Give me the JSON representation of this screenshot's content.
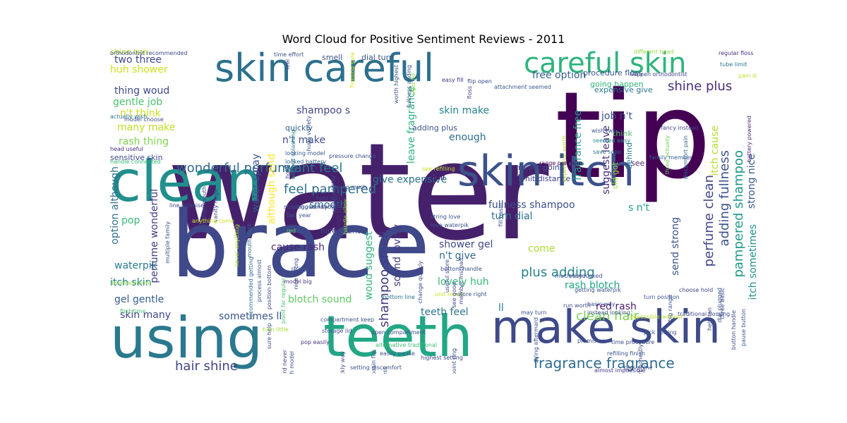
{
  "title": "Word Cloud for Positive Sentiment Reviews - 2011",
  "words": [
    {
      "text": "water",
      "color": "#46216b"
    },
    {
      "text": "brace",
      "color": "#3f4889"
    },
    {
      "text": "tip",
      "color": "#440154"
    },
    {
      "text": "clean",
      "color": "#21908d"
    },
    {
      "text": "using",
      "color": "#2a798e"
    },
    {
      "text": "teeth",
      "color": "#22a785"
    },
    {
      "text": "make skin",
      "color": "#3e4a89"
    },
    {
      "text": "skin careful",
      "color": "#2d708e"
    },
    {
      "text": "careful skin",
      "color": "#2fb47c"
    },
    {
      "text": "skin itch",
      "color": "#3b528b"
    },
    {
      "text": "fragrance fragrance",
      "color": "#2f6c8e"
    },
    {
      "text": "wonderful perfume",
      "color": "#31688e"
    },
    {
      "text": "feel pampered",
      "color": "#2d708e"
    },
    {
      "text": "want feel",
      "color": "#2a788e"
    },
    {
      "text": "shine plus",
      "color": "#472d7b"
    },
    {
      "text": "hair shine",
      "color": "#414487"
    },
    {
      "text": "clean hair",
      "color": "#7ad151"
    },
    {
      "text": "pampered shampoo",
      "color": "#1f9a8a"
    },
    {
      "text": "adding fullness",
      "color": "#3b528b"
    },
    {
      "text": "perfume clean",
      "color": "#404588"
    },
    {
      "text": "shampoo smell",
      "color": "#443a83"
    },
    {
      "text": "plus adding",
      "color": "#26828e"
    },
    {
      "text": "lovely huh",
      "color": "#35b779"
    },
    {
      "text": "teeth feel",
      "color": "#2c728e"
    },
    {
      "text": "blotch sound",
      "color": "#5ec962"
    },
    {
      "text": "shower gel",
      "color": "#3e4989"
    },
    {
      "text": "n't give",
      "color": "#31688e"
    },
    {
      "text": "rash blotch",
      "color": "#20a386"
    },
    {
      "text": "red rash",
      "color": "#481f70"
    },
    {
      "text": "send strong",
      "color": "#3b528b"
    },
    {
      "text": "itch sometimes",
      "color": "#20928c"
    },
    {
      "text": "strong nice",
      "color": "#39568c"
    },
    {
      "text": "itch cause",
      "color": "#b5de2b"
    },
    {
      "text": "skin make",
      "color": "#25848e"
    },
    {
      "text": "free option",
      "color": "#355f8d"
    },
    {
      "text": "job n't",
      "color": "#3b518b"
    },
    {
      "text": "shampoo s",
      "color": "#404688"
    },
    {
      "text": "n't make",
      "color": "#3e4c8a"
    },
    {
      "text": "enough",
      "color": "#2e6f8e"
    },
    {
      "text": "leave fragrance",
      "color": "#2db27d"
    },
    {
      "text": "fragrance free",
      "color": "#1fa188"
    },
    {
      "text": "water spray",
      "color": "#38588c"
    },
    {
      "text": "although send",
      "color": "#fde725"
    },
    {
      "text": "woud suggest",
      "color": "#31b57b"
    },
    {
      "text": "sound lovely",
      "color": "#443b84"
    },
    {
      "text": "give expensive",
      "color": "#2c718e"
    },
    {
      "text": "fullness shampoo",
      "color": "#3d4e8a"
    },
    {
      "text": "turn dial",
      "color": "#2d708e"
    },
    {
      "text": "suggest leave",
      "color": "#472f7d"
    },
    {
      "text": "s n't",
      "color": "#1fa287"
    },
    {
      "text": "come",
      "color": "#aadc32"
    },
    {
      "text": "ll",
      "color": "#2a788e"
    },
    {
      "text": "sometimes ll",
      "color": "#3a548c"
    },
    {
      "text": "cause rash",
      "color": "#482576"
    },
    {
      "text": "smooth",
      "color": "#31678e"
    },
    {
      "text": "two three",
      "color": "#3f4788"
    },
    {
      "text": "huh shower",
      "color": "#d0e11c"
    },
    {
      "text": "thing woud",
      "color": "#3e4a89"
    },
    {
      "text": "gentle job",
      "color": "#4ac16d"
    },
    {
      "text": "n't think",
      "color": "#c8e020"
    },
    {
      "text": "many make",
      "color": "#bddf26"
    },
    {
      "text": "rash thing",
      "color": "#7fd34e"
    },
    {
      "text": "option although",
      "color": "#2e6e8e"
    },
    {
      "text": "perfume wonderful",
      "color": "#433e85"
    },
    {
      "text": "pop",
      "color": "#3bbb75"
    },
    {
      "text": "waterpik",
      "color": "#287c8e"
    },
    {
      "text": "itch skin",
      "color": "#26818e"
    },
    {
      "text": "gel gentle",
      "color": "#355e8d"
    },
    {
      "text": "skin many",
      "color": "#404688"
    },
    {
      "text": "expensive give",
      "color": "#2a778e"
    },
    {
      "text": "dial turn",
      "color": "#3a548c"
    },
    {
      "text": "smell",
      "color": "#3b528b"
    },
    {
      "text": "half",
      "color": "#481a6c"
    },
    {
      "text": "nice scent",
      "color": "#3e4a89"
    },
    {
      "text": "shine hair",
      "color": "#b8de29"
    },
    {
      "text": "sensitive skin",
      "color": "#3e4989"
    },
    {
      "text": "quickly",
      "color": "#33638d"
    },
    {
      "text": "adding plus",
      "color": "#3a538b"
    },
    {
      "text": "never going",
      "color": "#3f4788"
    },
    {
      "text": "limit distance",
      "color": "#414287"
    },
    {
      "text": "procedure floss",
      "color": "#3a548c"
    },
    {
      "text": "going happen",
      "color": "#2fb47c"
    },
    {
      "text": "think",
      "color": "#4cc26c"
    },
    {
      "text": "behind",
      "color": "#277f8e"
    },
    {
      "text": "old got",
      "color": "#a2da37"
    },
    {
      "text": "see",
      "color": "#482878"
    },
    {
      "text": "orthodontist recommended",
      "color": "#3e4a89"
    },
    {
      "text": "regular floss",
      "color": "#46307e"
    },
    {
      "text": "tube limit",
      "color": "#2a768e"
    },
    {
      "text": "pain different",
      "color": "#bade28"
    },
    {
      "text": "different head",
      "color": "#90d743"
    },
    {
      "text": "time effort",
      "color": "#39558c"
    },
    {
      "text": "happen orthodontist",
      "color": "#3f4788"
    },
    {
      "text": "expensive worth",
      "color": "#b2dd2d"
    },
    {
      "text": "fancy instead",
      "color": "#404588"
    },
    {
      "text": "three actually",
      "color": "#6ece58"
    },
    {
      "text": "discomfort pain",
      "color": "#31688e"
    },
    {
      "text": "battery powered",
      "color": "#472d7b"
    },
    {
      "text": "save sooo",
      "color": "#2c718e"
    },
    {
      "text": "seemed easy",
      "color": "#21918c"
    },
    {
      "text": "wish two",
      "color": "#3b528b"
    },
    {
      "text": "family member",
      "color": "#355e8d"
    },
    {
      "text": "range pressure",
      "color": "#440154"
    },
    {
      "text": "see refilling",
      "color": "#c0df25"
    },
    {
      "text": "feel",
      "color": "#404688"
    },
    {
      "text": "flossing sure",
      "color": "#d8e219"
    },
    {
      "text": "worth highest",
      "color": "#3a538b"
    },
    {
      "text": "right lid",
      "color": "#8bd646"
    },
    {
      "text": "easy fill",
      "color": "#46337f"
    },
    {
      "text": "flip open",
      "color": "#3e4c8a"
    },
    {
      "text": "attachment seemed",
      "color": "#38598c"
    },
    {
      "text": "without splashing",
      "color": "#277e8e"
    },
    {
      "text": "huge variety",
      "color": "#3b528b"
    },
    {
      "text": "model choose",
      "color": "#3d4e8a"
    },
    {
      "text": "looking model",
      "color": "#38588c"
    },
    {
      "text": "looked battery",
      "color": "#33638d"
    },
    {
      "text": "actually wish",
      "color": "#2d708e"
    },
    {
      "text": "head useful",
      "color": "#472c7a"
    },
    {
      "text": "handle connected",
      "color": "#33b67a"
    },
    {
      "text": "lid attachment",
      "color": "#8ed645"
    },
    {
      "text": "first time",
      "color": "#4cc26c"
    },
    {
      "text": "vanity huge",
      "color": "#404588"
    },
    {
      "text": "position mouth",
      "color": "#3f4788"
    },
    {
      "text": "line promise",
      "color": "#3e4a89"
    },
    {
      "text": "multiple family",
      "color": "#3c4f8a"
    },
    {
      "text": "anything come",
      "color": "#cae11f"
    },
    {
      "text": "standing vanity",
      "color": "#3f4788"
    },
    {
      "text": "two year",
      "color": "#3b528b"
    },
    {
      "text": "red",
      "color": "#6ccd5a"
    },
    {
      "text": "recommended getting",
      "color": "#2e6f8e"
    },
    {
      "text": "mouth start",
      "color": "#31688e"
    },
    {
      "text": "never anything",
      "color": "#b5de2b"
    },
    {
      "text": "process almost",
      "color": "#3b528b"
    },
    {
      "text": "plugged handle",
      "color": "#3c4f8a"
    },
    {
      "text": "hold",
      "color": "#3e4a89"
    },
    {
      "text": "position bottom",
      "color": "#3f4788"
    },
    {
      "text": "point far regular",
      "color": "#4ac16d"
    },
    {
      "text": "hold lot",
      "color": "#404688"
    },
    {
      "text": "sooo much",
      "color": "#3f4788"
    },
    {
      "text": "handle allow",
      "color": "#9bd93c"
    },
    {
      "text": "pressure change",
      "color": "#3b528b"
    },
    {
      "text": "spray",
      "color": "#3d4e8a"
    },
    {
      "text": "allow shut",
      "color": "#3f4788"
    },
    {
      "text": "enough standing",
      "color": "#46337f"
    },
    {
      "text": "fullness adding",
      "color": "#3b528b"
    },
    {
      "text": "floss",
      "color": "#404588"
    },
    {
      "text": "nice strong",
      "color": "#3e4989"
    },
    {
      "text": "string",
      "color": "#3c4f8a"
    },
    {
      "text": "model big",
      "color": "#46337f"
    },
    {
      "text": "bottom handle",
      "color": "#3b528b"
    },
    {
      "text": "fill basin",
      "color": "#3c4f8a"
    },
    {
      "text": "member instead",
      "color": "#3f4788"
    },
    {
      "text": "string love",
      "color": "#3b528b"
    },
    {
      "text": "love waterpik",
      "color": "#3d4e8a"
    },
    {
      "text": "change quickly",
      "color": "#3e4a89"
    },
    {
      "text": "useful store",
      "color": "#3f4788"
    },
    {
      "text": "unit mouth",
      "color": "#c2df23"
    },
    {
      "text": "see good",
      "color": "#3f4788"
    },
    {
      "text": "store right",
      "color": "#3b528b"
    },
    {
      "text": "bottom line",
      "color": "#2c728e"
    },
    {
      "text": "open compartment",
      "color": "#3d4e8a"
    },
    {
      "text": "alternative traditional",
      "color": "#3dbc74"
    },
    {
      "text": "easily pause",
      "color": "#3b528b"
    },
    {
      "text": "quickly way",
      "color": "#3f4788"
    },
    {
      "text": "finish model",
      "color": "#39558c"
    },
    {
      "text": "compartment keep",
      "color": "#3b528b"
    },
    {
      "text": "storage lid",
      "color": "#3c4f8a"
    },
    {
      "text": "pop easily",
      "color": "#46337f"
    },
    {
      "text": "sure help",
      "color": "#3e4a89"
    },
    {
      "text": "turn little",
      "color": "#a8db34"
    },
    {
      "text": "afterward never",
      "color": "#414487"
    },
    {
      "text": "setting discomfort",
      "color": "#3b528b"
    },
    {
      "text": "little mess",
      "color": "#3c4f8a"
    },
    {
      "text": "basin flip",
      "color": "#3b528b"
    },
    {
      "text": "highest setting",
      "color": "#3f4788"
    },
    {
      "text": "point ring",
      "color": "#3b528b"
    },
    {
      "text": "impossible without",
      "color": "#b5de2b"
    },
    {
      "text": "traditional flossing",
      "color": "#3e4a89"
    },
    {
      "text": "turn position",
      "color": "#3b528b"
    },
    {
      "text": "choose hold",
      "color": "#3f4788"
    },
    {
      "text": "big range",
      "color": "#3b528b"
    },
    {
      "text": "help ton",
      "color": "#3e4a89"
    },
    {
      "text": "dial plugged",
      "color": "#39558c"
    },
    {
      "text": "button handle",
      "color": "#3c4f8a"
    },
    {
      "text": "three basic",
      "color": "#3d4e8a"
    },
    {
      "text": "pause button",
      "color": "#3b528b"
    },
    {
      "text": "almost impossible",
      "color": "#46337f"
    },
    {
      "text": "plus shine",
      "color": "#3f4788"
    },
    {
      "text": "refilling finish",
      "color": "#3b528b"
    },
    {
      "text": "time procedure",
      "color": "#3c4f8a"
    },
    {
      "text": "effort honestly",
      "color": "#3d4e8a"
    },
    {
      "text": "pick setting",
      "color": "#3b528b"
    },
    {
      "text": "much time",
      "color": "#3c4f8a"
    },
    {
      "text": "easy looked",
      "color": "#3d4e8a"
    },
    {
      "text": "promise son",
      "color": "#3b528b"
    },
    {
      "text": "basic way",
      "color": "#3c4f8a"
    },
    {
      "text": "instead looking",
      "color": "#3d4e8a"
    },
    {
      "text": "getting waterpik",
      "color": "#3b528b"
    },
    {
      "text": "run worth",
      "color": "#3c4f8a"
    },
    {
      "text": "may turn",
      "color": "#3d4e8a"
    },
    {
      "text": "string aftermard",
      "color": "#3b528b"
    }
  ]
}
